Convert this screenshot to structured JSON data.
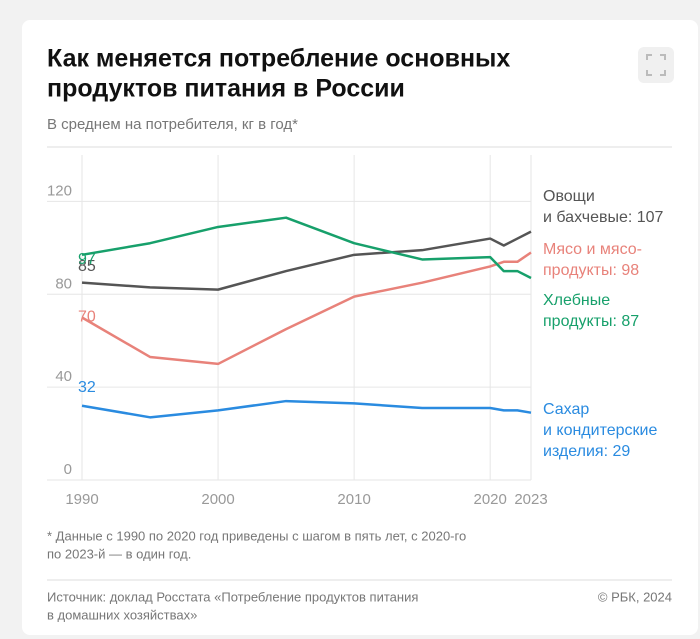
{
  "header": {
    "title_lines": [
      "Как меняется потребление основных",
      "продуктов питания в России"
    ],
    "subtitle": "В среднем на потребителя, кг в год*"
  },
  "chart_data": {
    "type": "line",
    "x": [
      1990,
      1995,
      2000,
      2005,
      2010,
      2015,
      2020,
      2021,
      2022,
      2023
    ],
    "xlim": [
      1990,
      2023
    ],
    "xticks": [
      1990,
      2000,
      2010,
      2020,
      2023
    ],
    "ylim": [
      0,
      140
    ],
    "yticks": [
      0,
      40,
      80,
      120
    ],
    "grid": true,
    "series": [
      {
        "label_lines": [
          "Овощи",
          "и бахчевые: 107"
        ],
        "color": "#555555",
        "values": [
          85,
          83,
          82,
          90,
          97,
          99,
          104,
          101,
          104,
          107
        ]
      },
      {
        "label_lines": [
          "Мясо и мясо-",
          "продукты: 98"
        ],
        "color": "#e8827a",
        "values": [
          70,
          53,
          50,
          65,
          79,
          85,
          92,
          94,
          94,
          98
        ]
      },
      {
        "label_lines": [
          "Хлебные",
          "продукты: 87"
        ],
        "color": "#17a06b",
        "values": [
          97,
          102,
          109,
          113,
          102,
          95,
          96,
          90,
          90,
          87
        ]
      },
      {
        "label_lines": [
          "Сахар",
          "и кондитерские",
          "изделия: 29"
        ],
        "color": "#2a8be0",
        "values": [
          32,
          27,
          30,
          34,
          33,
          31,
          31,
          30,
          30,
          29
        ]
      }
    ]
  },
  "footnote_lines": [
    "* Данные с 1990 по 2020 год приведены с шагом в пять лет, с 2020-го",
    "по 2023-й — в один год."
  ],
  "source_lines": [
    "Источник: доклад Росстата «Потребление продуктов питания",
    "в домашних хозяйствах»"
  ],
  "copyright": "© РБК, 2024"
}
